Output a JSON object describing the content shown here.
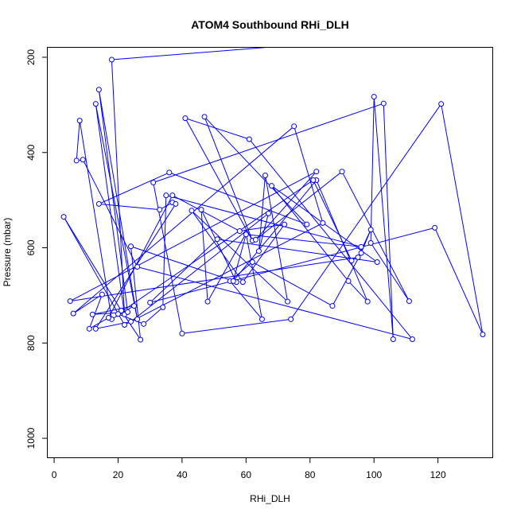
{
  "chart_data": {
    "type": "line",
    "title": "ATOM4 Southbound RHi_DLH",
    "xlabel": "RHi_DLH",
    "ylabel": "Pressure (mbar)",
    "xlim": [
      -2,
      137
    ],
    "ylim": [
      1040,
      180
    ],
    "y_reversed": true,
    "x_ticks": [
      0,
      20,
      40,
      60,
      80,
      100,
      120
    ],
    "y_ticks": [
      200,
      400,
      600,
      800,
      1000
    ],
    "grid": false,
    "legend": "none",
    "series_color": "#0000ff",
    "series": [
      {
        "points": [
          [
            140,
            140
          ],
          [
            18,
            205
          ],
          [
            22,
            740
          ],
          [
            13,
            298
          ],
          [
            26,
            750
          ],
          [
            14,
            268
          ],
          [
            23,
            735
          ],
          [
            12,
            740
          ],
          [
            25,
            722
          ],
          [
            18,
            750
          ],
          [
            8,
            333
          ],
          [
            7,
            417
          ],
          [
            9,
            415
          ],
          [
            26,
            640
          ],
          [
            112,
            792
          ],
          [
            61,
            372
          ],
          [
            41,
            328
          ],
          [
            62,
            585
          ],
          [
            47,
            325
          ],
          [
            79,
            551
          ],
          [
            36,
            442
          ],
          [
            14,
            508
          ],
          [
            33,
            520
          ],
          [
            37,
            505
          ],
          [
            38,
            508
          ],
          [
            13,
            770
          ],
          [
            24,
            755
          ],
          [
            67,
            528
          ],
          [
            64,
            607
          ],
          [
            66,
            448
          ],
          [
            73,
            713
          ],
          [
            43,
            522
          ],
          [
            59,
            672
          ],
          [
            72,
            551
          ],
          [
            58,
            565
          ],
          [
            37,
            490
          ],
          [
            17,
            747
          ],
          [
            11,
            770
          ],
          [
            15,
            698
          ],
          [
            6,
            738
          ],
          [
            75,
            345
          ],
          [
            84,
            548
          ],
          [
            22,
            762
          ],
          [
            3,
            535
          ],
          [
            21,
            732
          ],
          [
            27,
            793
          ],
          [
            24,
            597
          ],
          [
            57,
            672
          ],
          [
            46,
            520
          ],
          [
            48,
            713
          ],
          [
            60,
            570
          ],
          [
            65,
            750
          ],
          [
            55,
            670
          ],
          [
            62,
            630
          ],
          [
            87,
            722
          ],
          [
            96,
            611
          ],
          [
            99,
            562
          ],
          [
            95,
            620
          ],
          [
            5,
            712
          ],
          [
            82,
            440
          ],
          [
            63,
            583
          ],
          [
            90,
            440
          ],
          [
            111,
            712
          ],
          [
            99,
            590
          ],
          [
            100,
            283
          ],
          [
            106,
            792
          ],
          [
            103,
            297
          ],
          [
            31,
            463
          ],
          [
            40,
            780
          ],
          [
            74,
            750
          ],
          [
            121,
            298
          ],
          [
            134,
            782
          ],
          [
            119,
            558
          ],
          [
            30,
            715
          ],
          [
            51,
            582
          ],
          [
            101,
            630
          ],
          [
            68,
            470
          ],
          [
            92,
            670
          ],
          [
            98,
            713
          ],
          [
            82,
            458
          ],
          [
            56,
            670
          ],
          [
            60,
            572
          ],
          [
            96,
            598
          ],
          [
            35,
            490
          ],
          [
            34,
            725
          ],
          [
            28,
            760
          ],
          [
            20,
            739
          ],
          [
            81,
            458
          ],
          [
            93,
            627
          ]
        ]
      }
    ]
  }
}
